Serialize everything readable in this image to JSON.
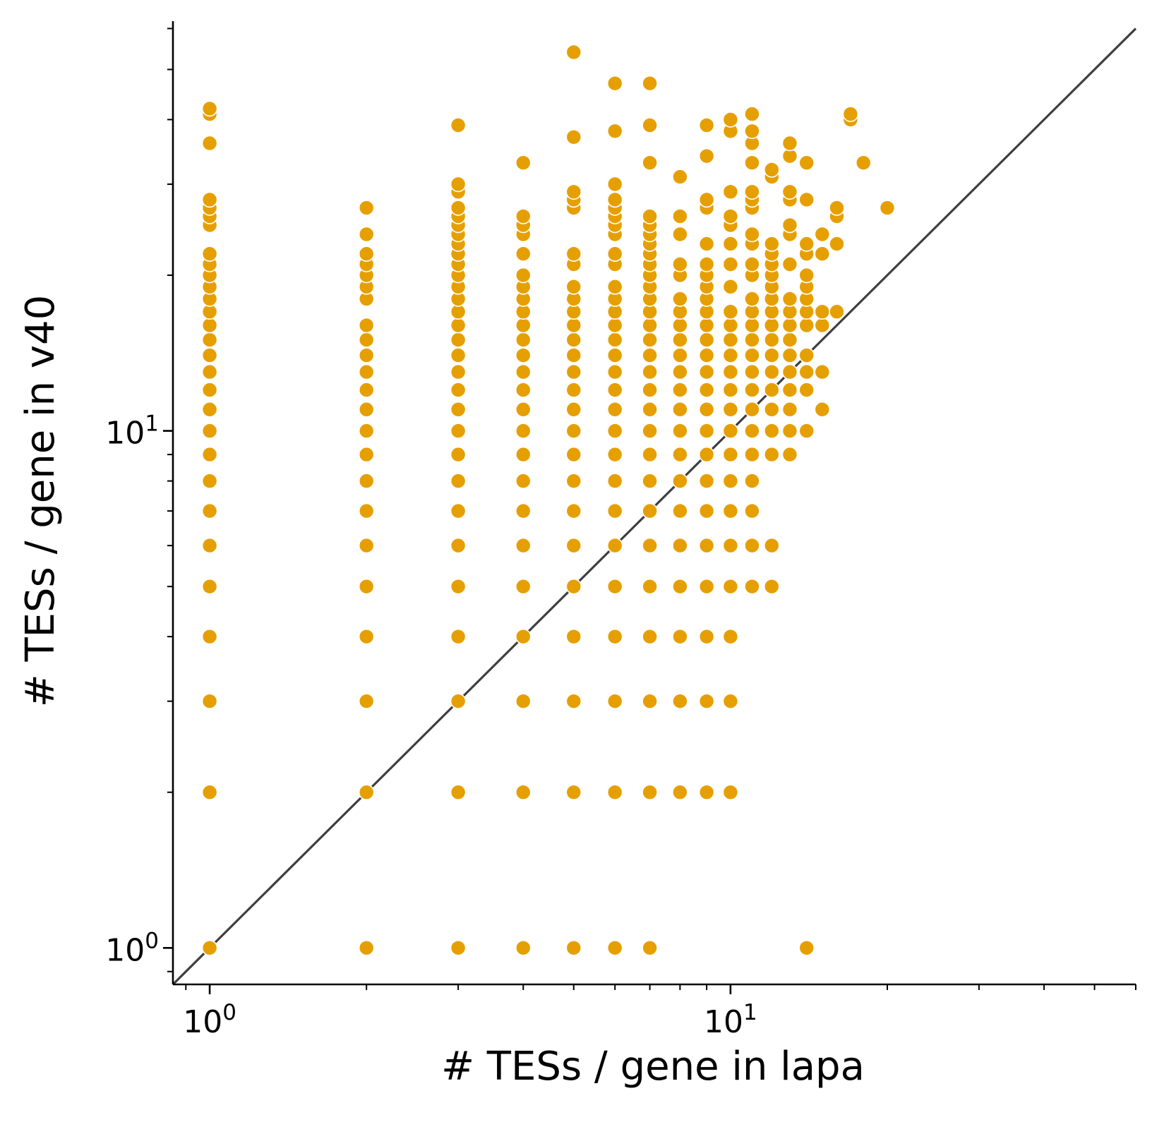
{
  "chart_data": {
    "type": "scatter",
    "xlabel": "# TESs / gene in lapa",
    "ylabel": "# TESs / gene in v40",
    "xscale": "log",
    "yscale": "log",
    "xlim": [
      0.85,
      60
    ],
    "ylim": [
      0.85,
      62
    ],
    "x_ticks": [
      {
        "base": "10",
        "exp": "0",
        "value": 1
      },
      {
        "base": "10",
        "exp": "1",
        "value": 10
      }
    ],
    "y_ticks": [
      {
        "base": "10",
        "exp": "0",
        "value": 1
      },
      {
        "base": "10",
        "exp": "1",
        "value": 10
      }
    ],
    "grid": false,
    "reference_line": "y = x",
    "colors": {
      "points": "#E69F00",
      "point_edge": "#ffffff",
      "line": "#3f3f3f",
      "axis": "#000000"
    },
    "columns": [
      {
        "x": 1,
        "y": [
          1,
          2,
          3,
          4,
          5,
          6,
          7,
          8,
          9,
          10,
          11,
          12,
          13,
          14,
          15,
          16,
          17,
          18,
          19,
          20,
          21,
          22,
          25,
          26,
          27,
          28,
          36,
          41,
          42
        ]
      },
      {
        "x": 2,
        "y": [
          1,
          2,
          3,
          4,
          5,
          6,
          7,
          8,
          9,
          10,
          11,
          12,
          13,
          14,
          15,
          16,
          18,
          19,
          20,
          21,
          22,
          24,
          27
        ]
      },
      {
        "x": 3,
        "y": [
          1,
          2,
          3,
          4,
          5,
          6,
          7,
          8,
          9,
          10,
          11,
          12,
          13,
          14,
          15,
          16,
          17,
          18,
          19,
          20,
          21,
          22,
          23,
          24,
          25,
          26,
          27,
          29,
          30,
          39
        ]
      },
      {
        "x": 4,
        "y": [
          1,
          2,
          3,
          4,
          5,
          6,
          7,
          8,
          9,
          10,
          11,
          12,
          13,
          14,
          15,
          16,
          17,
          18,
          19,
          20,
          22,
          24,
          25,
          26,
          33
        ]
      },
      {
        "x": 5,
        "y": [
          1,
          2,
          3,
          4,
          5,
          6,
          7,
          8,
          9,
          10,
          11,
          12,
          13,
          14,
          15,
          16,
          17,
          18,
          19,
          21,
          22,
          27,
          28,
          29,
          37,
          54
        ]
      },
      {
        "x": 6,
        "y": [
          1,
          2,
          3,
          4,
          5,
          6,
          7,
          8,
          9,
          10,
          11,
          12,
          13,
          14,
          15,
          16,
          17,
          18,
          19,
          21,
          22,
          24,
          25,
          26,
          27,
          28,
          30,
          38,
          47
        ]
      },
      {
        "x": 7,
        "y": [
          1,
          2,
          3,
          4,
          5,
          6,
          7,
          8,
          9,
          10,
          11,
          12,
          13,
          14,
          15,
          16,
          17,
          18,
          19,
          20,
          21,
          22,
          23,
          24,
          25,
          26,
          33,
          39,
          47
        ]
      },
      {
        "x": 8,
        "y": [
          2,
          3,
          4,
          5,
          6,
          7,
          8,
          9,
          10,
          11,
          12,
          13,
          14,
          15,
          16,
          17,
          18,
          20,
          21,
          24,
          26,
          31
        ]
      },
      {
        "x": 9,
        "y": [
          2,
          3,
          4,
          5,
          6,
          7,
          8,
          9,
          10,
          11,
          12,
          13,
          14,
          15,
          16,
          17,
          18,
          19,
          20,
          21,
          23,
          27,
          28,
          34,
          39
        ]
      },
      {
        "x": 10,
        "y": [
          2,
          3,
          4,
          5,
          6,
          7,
          8,
          9,
          10,
          11,
          12,
          13,
          14,
          15,
          16,
          17,
          19,
          21,
          23,
          25,
          26,
          29,
          38,
          40
        ]
      },
      {
        "x": 11,
        "y": [
          5,
          6,
          7,
          8,
          9,
          10,
          11,
          12,
          13,
          14,
          15,
          16,
          17,
          18,
          20,
          21,
          23,
          24,
          27,
          28,
          29,
          33,
          36,
          38,
          41
        ]
      },
      {
        "x": 12,
        "y": [
          5,
          6,
          9,
          10,
          11,
          12,
          13,
          14,
          15,
          16,
          17,
          18,
          19,
          20,
          21,
          22,
          23,
          31,
          32
        ]
      },
      {
        "x": 13,
        "y": [
          9,
          10,
          11,
          12,
          13,
          14,
          15,
          16,
          17,
          18,
          21,
          24,
          25,
          28,
          29,
          34,
          36
        ]
      },
      {
        "x": 14,
        "y": [
          1,
          10,
          12,
          13,
          14,
          16,
          17,
          18,
          19,
          20,
          22,
          23,
          28,
          33
        ]
      },
      {
        "x": 15,
        "y": [
          11,
          13,
          16,
          17,
          22,
          24
        ]
      },
      {
        "x": 16,
        "y": [
          17,
          23,
          26,
          27
        ]
      },
      {
        "x": 17,
        "y": [
          40,
          41
        ]
      },
      {
        "x": 18,
        "y": [
          33
        ]
      },
      {
        "x": 20,
        "y": [
          27
        ]
      }
    ]
  }
}
